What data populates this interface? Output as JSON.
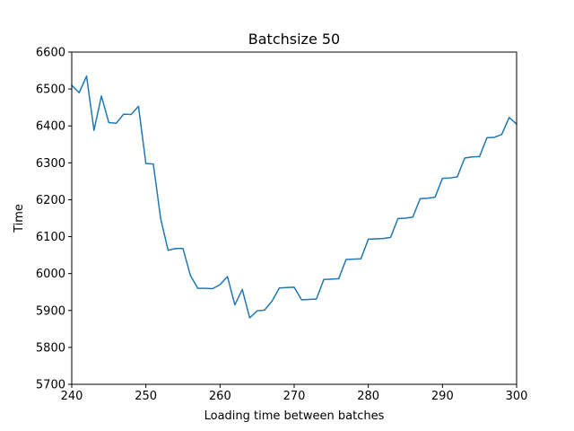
{
  "chart_data": {
    "type": "line",
    "title": "Batchsize 50",
    "xlabel": "Loading time between batches",
    "ylabel": "Time",
    "xlim": [
      240,
      300
    ],
    "ylim": [
      5700,
      6600
    ],
    "xticks": [
      240,
      250,
      260,
      270,
      280,
      290,
      300
    ],
    "yticks": [
      5700,
      5800,
      5900,
      6000,
      6100,
      6200,
      6300,
      6400,
      6500,
      6600
    ],
    "grid": false,
    "series": [
      {
        "color": "#1f77b4",
        "x": [
          240,
          241,
          242,
          243,
          244,
          245,
          246,
          247,
          248,
          249,
          250,
          251,
          252,
          253,
          254,
          255,
          256,
          257,
          258,
          259,
          260,
          261,
          262,
          263,
          264,
          265,
          266,
          267,
          268,
          269,
          270,
          271,
          272,
          273,
          274,
          275,
          276,
          277,
          278,
          279,
          280,
          281,
          282,
          283,
          284,
          285,
          286,
          287,
          288,
          289,
          290,
          291,
          292,
          293,
          294,
          295,
          296,
          297,
          298,
          299,
          300
        ],
        "y": [
          6510,
          6490,
          6535,
          6388,
          6481,
          6409,
          6407,
          6432,
          6431,
          6453,
          6298,
          6297,
          6148,
          6063,
          6068,
          6068,
          5995,
          5960,
          5960,
          5959,
          5970,
          5992,
          5915,
          5957,
          5880,
          5899,
          5901,
          5925,
          5961,
          5962,
          5963,
          5929,
          5930,
          5931,
          5984,
          5985,
          5986,
          6038,
          6039,
          6040,
          6093,
          6094,
          6095,
          6098,
          6149,
          6150,
          6153,
          6203,
          6204,
          6207,
          6258,
          6259,
          6262,
          6313,
          6316,
          6317,
          6368,
          6369,
          6377,
          6423,
          6405
        ]
      }
    ]
  }
}
